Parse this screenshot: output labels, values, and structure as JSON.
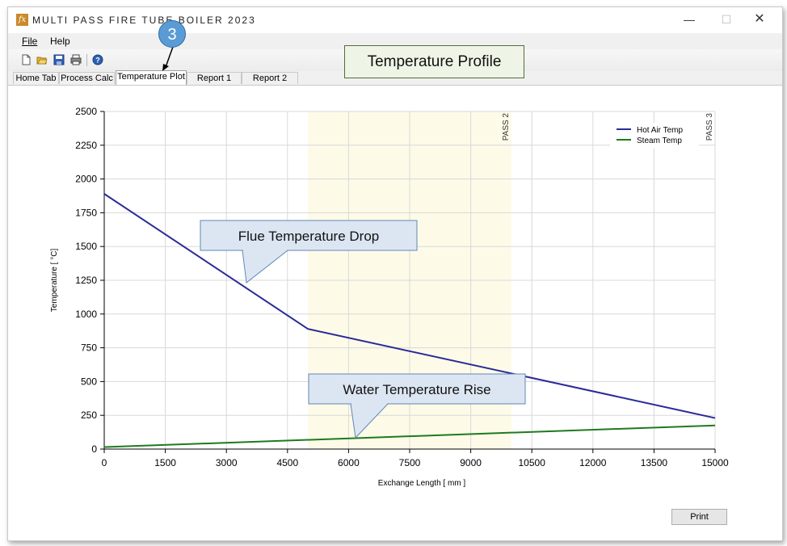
{
  "window": {
    "title": "MULTI PASS FIRE TUBE BOILER 2023",
    "icon": "fx-app-icon",
    "controls": {
      "minimize": "—",
      "maximize": "☐",
      "close": "✕"
    }
  },
  "menu": {
    "file": "File",
    "help": "Help"
  },
  "toolbar": {
    "icons": [
      "new-file-icon",
      "open-folder-icon",
      "save-icon",
      "print-icon",
      "help-icon"
    ]
  },
  "tabs": [
    {
      "label": "Home Tab",
      "active": false
    },
    {
      "label": "Process Calc",
      "active": false
    },
    {
      "label": "Temperature Plot",
      "active": true
    },
    {
      "label": "Report 1",
      "active": false
    },
    {
      "label": "Report 2",
      "active": false
    }
  ],
  "annotations": {
    "step_number": "3",
    "title_callout": "Temperature Profile",
    "flue_callout": "Flue Temperature  Drop",
    "water_callout": "Water Temperature  Rise"
  },
  "print_button": "Print",
  "chart_data": {
    "type": "line",
    "title": "",
    "xlabel": "Exchange Length [ mm ]",
    "ylabel": "Temperature [ °C]",
    "xlim": [
      0,
      15000
    ],
    "ylim": [
      0,
      2500
    ],
    "xticks": [
      0,
      1500,
      3000,
      4500,
      6000,
      7500,
      9000,
      10500,
      12000,
      13500,
      15000
    ],
    "yticks": [
      0,
      250,
      500,
      750,
      1000,
      1250,
      1500,
      1750,
      2000,
      2250,
      2500
    ],
    "grid": true,
    "legend_position": "top-right",
    "series": [
      {
        "name": "Hot Air Temp",
        "color": "#2a2a9a",
        "x": [
          0,
          5000,
          15000
        ],
        "y": [
          1890,
          890,
          230
        ]
      },
      {
        "name": "Steam Temp",
        "color": "#1e7a1e",
        "x": [
          0,
          15000
        ],
        "y": [
          15,
          175
        ]
      }
    ],
    "regions": [
      {
        "x_start": 5000,
        "x_end": 10000,
        "color": "#fdfbe8"
      }
    ],
    "markers": [
      {
        "label": "PASS 2",
        "x": 10000
      },
      {
        "label": "PASS 3",
        "x": 15000
      }
    ]
  }
}
